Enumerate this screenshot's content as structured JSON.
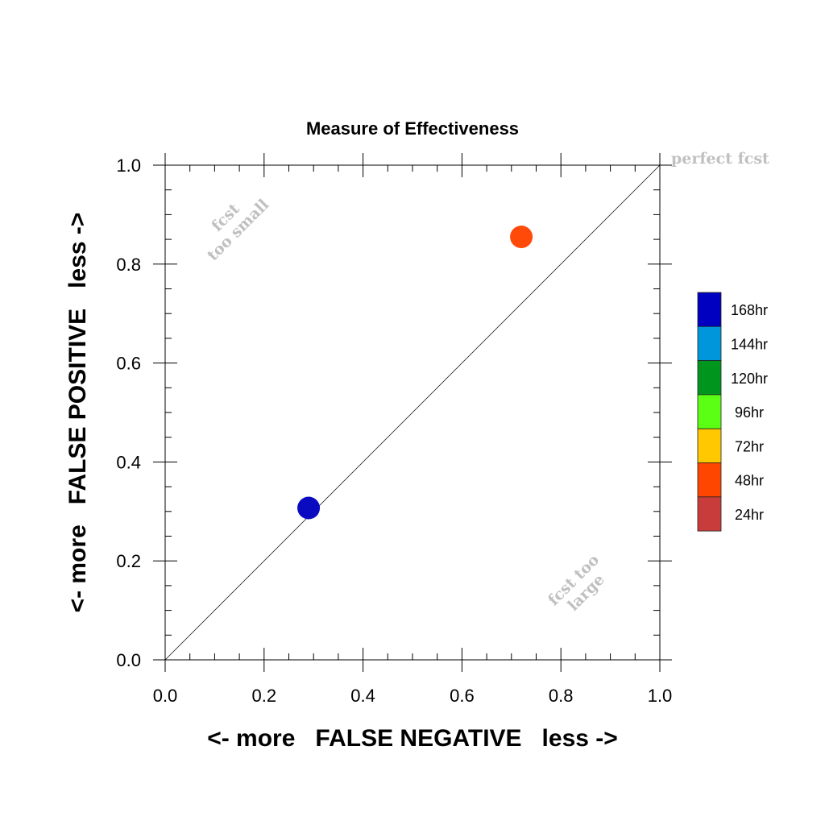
{
  "chart_data": {
    "type": "scatter",
    "title": "Measure of Effectiveness",
    "xlabel": "<- more   FALSE NEGATIVE   less ->",
    "ylabel": "<- more   FALSE POSITIVE   less ->",
    "xlim": [
      0,
      1
    ],
    "ylim": [
      0,
      1
    ],
    "x_ticks": [
      "0.0",
      "0.2",
      "0.4",
      "0.6",
      "0.8",
      "1.0"
    ],
    "y_ticks": [
      "0.0",
      "0.2",
      "0.4",
      "0.6",
      "0.8",
      "1.0"
    ],
    "grid": false,
    "diagonal_line": true,
    "points": [
      {
        "x": 0.29,
        "y": 0.307,
        "color": "#0a0ac0",
        "series": "168hr"
      },
      {
        "x": 0.72,
        "y": 0.855,
        "color": "#ff4a0a",
        "series": "48hr"
      }
    ],
    "annotations": {
      "top_right": "perfect fcst",
      "upper_left_line1": "fcst",
      "upper_left_line2": "too small",
      "lower_right_line1": "fcst too",
      "lower_right_line2": "large"
    },
    "legend": {
      "placement": "right",
      "items": [
        {
          "label": "168hr",
          "color": "#0000c0"
        },
        {
          "label": "144hr",
          "color": "#0096dc"
        },
        {
          "label": "120hr",
          "color": "#00961e"
        },
        {
          "label": "96hr",
          "color": "#5aff14"
        },
        {
          "label": "72hr",
          "color": "#ffc800"
        },
        {
          "label": "48hr",
          "color": "#ff4600"
        },
        {
          "label": "24hr",
          "color": "#c83c3c"
        }
      ]
    }
  }
}
